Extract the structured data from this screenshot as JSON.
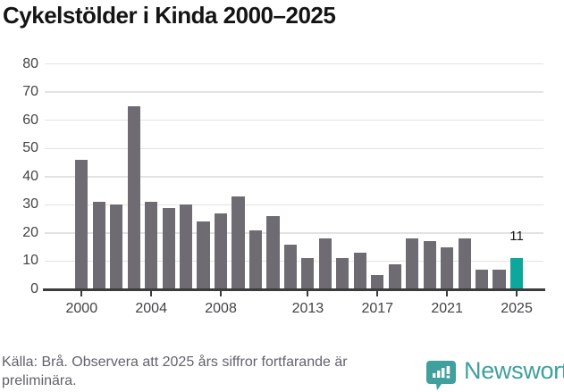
{
  "header": {
    "title": "Cykelstölder i Kinda 2000–2025"
  },
  "chart_data": {
    "type": "bar",
    "title": "Cykelstölder i Kinda 2000–2025",
    "categories": [
      2000,
      2001,
      2002,
      2003,
      2004,
      2005,
      2006,
      2007,
      2008,
      2009,
      2010,
      2011,
      2012,
      2013,
      2014,
      2015,
      2016,
      2017,
      2018,
      2019,
      2020,
      2021,
      2022,
      2023,
      2024,
      2025
    ],
    "values": [
      46,
      31,
      30,
      65,
      31,
      29,
      30,
      24,
      27,
      33,
      21,
      26,
      16,
      11,
      18,
      11,
      13,
      5,
      9,
      18,
      17,
      15,
      18,
      7,
      7,
      11
    ],
    "highlight_index": 25,
    "highlight_value_label": "11",
    "xlabel": "",
    "ylabel": "",
    "ylim": [
      0,
      80
    ],
    "yticks": [
      0,
      10,
      20,
      30,
      40,
      50,
      60,
      70,
      80
    ],
    "xtick_years": [
      2000,
      2004,
      2008,
      2013,
      2017,
      2021,
      2025
    ],
    "grid": true,
    "legend": "none",
    "bar_color": "#6e6c72",
    "highlight_color": "#0da79b"
  },
  "footer": {
    "source": "Källa: Brå. Observera att 2025 års siffror fortfarande är preliminära.",
    "brand": "Newsworthy",
    "brand_color": "#3fa09e",
    "brand_icon": "newsworthy-bubble-barchart-icon"
  }
}
